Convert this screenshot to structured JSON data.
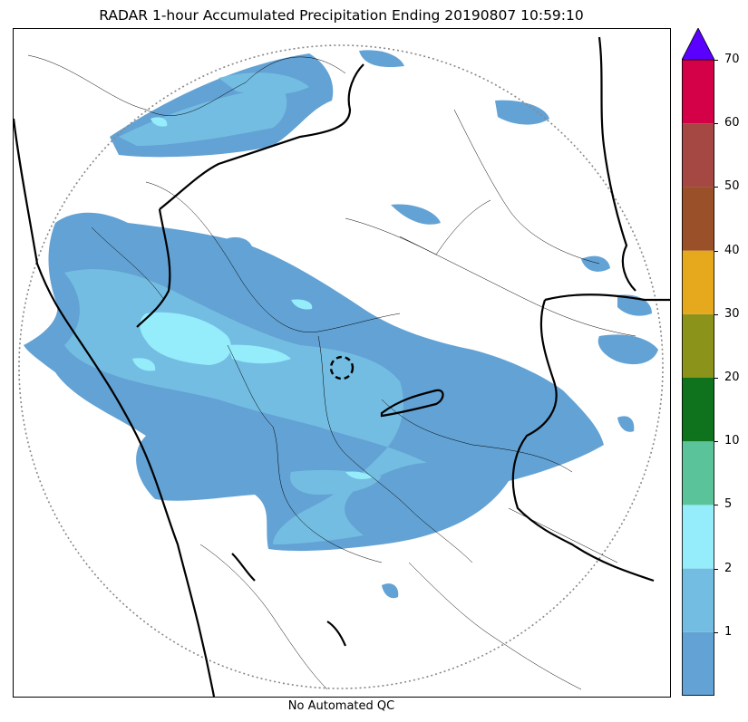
{
  "title": "RADAR 1-hour Accumulated Precipitation Ending 20190807 10:59:10",
  "footer": "No Automated QC",
  "colorbar": {
    "labels": [
      "1",
      "2",
      "5",
      "10",
      "20",
      "30",
      "40",
      "50",
      "60",
      "70"
    ],
    "colors": [
      "#63a2d4",
      "#74bde2",
      "#95ecfb",
      "#5bc39a",
      "#0e731c",
      "#8b931a",
      "#e6a91e",
      "#9a5028",
      "#a54743",
      "#d40048"
    ],
    "extend_color": "#5a00ff"
  },
  "map": {
    "range_ring_color": "#888888",
    "radar_marker_color": "#000000"
  }
}
